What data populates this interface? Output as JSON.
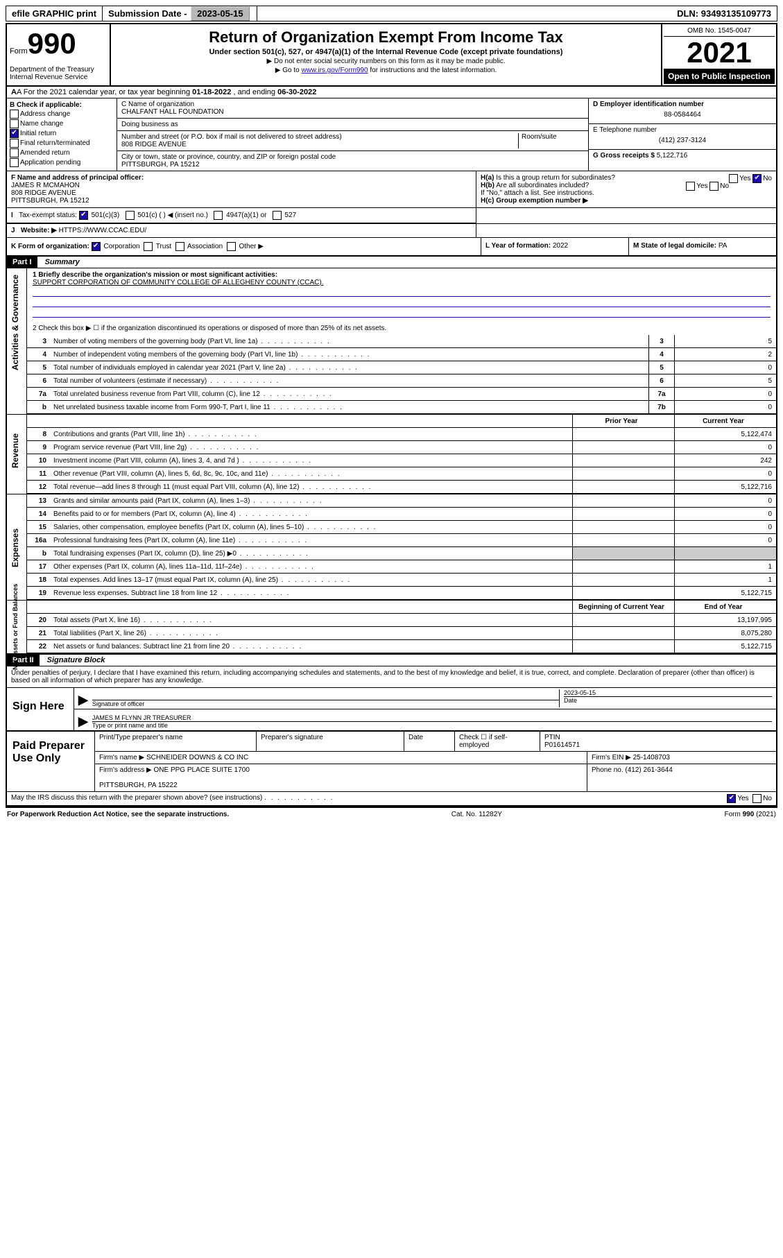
{
  "topbar": {
    "efile": "efile GRAPHIC print",
    "submission_label": "Submission Date - ",
    "submission_date": "2023-05-15",
    "dln_label": "DLN: ",
    "dln": "93493135109773"
  },
  "header": {
    "form_word": "Form",
    "form_number": "990",
    "dept": "Department of the Treasury\nInternal Revenue Service",
    "title": "Return of Organization Exempt From Income Tax",
    "subtitle": "Under section 501(c), 527, or 4947(a)(1) of the Internal Revenue Code (except private foundations)",
    "note1": "▶ Do not enter social security numbers on this form as it may be made public.",
    "note2_pre": "▶ Go to ",
    "note2_link": "www.irs.gov/Form990",
    "note2_post": " for instructions and the latest information.",
    "omb": "OMB No. 1545-0047",
    "year": "2021",
    "open": "Open to Public Inspection"
  },
  "row_a": {
    "text_pre": "A For the 2021 calendar year, or tax year beginning ",
    "begin": "01-18-2022",
    "mid": " , and ending ",
    "end": "06-30-2022"
  },
  "col_b": {
    "label": "B Check if applicable:",
    "opts": [
      "Address change",
      "Name change",
      "Initial return",
      "Final return/terminated",
      "Amended return",
      "Application pending"
    ],
    "checked_idx": 2
  },
  "col_c": {
    "name_lbl": "C Name of organization",
    "name": "CHALFANT HALL FOUNDATION",
    "dba_lbl": "Doing business as",
    "dba": "",
    "street_lbl": "Number and street (or P.O. box if mail is not delivered to street address)",
    "room_lbl": "Room/suite",
    "street": "808 RIDGE AVENUE",
    "city_lbl": "City or town, state or province, country, and ZIP or foreign postal code",
    "city": "PITTSBURGH, PA  15212"
  },
  "col_de": {
    "d_lbl": "D Employer identification number",
    "d_val": "88-0584464",
    "e_lbl": "E Telephone number",
    "e_val": "(412) 237-3124",
    "g_lbl": "G Gross receipts $ ",
    "g_val": "5,122,716"
  },
  "row_f": {
    "lbl": "F Name and address of principal officer:",
    "name": "JAMES R MCMAHON",
    "addr1": "808 RIDGE AVENUE",
    "addr2": "PITTSBURGH, PA  15212"
  },
  "row_h": {
    "a_lbl": "H(a)  Is this a group return for subordinates?",
    "a_yes": "Yes",
    "a_no": "No",
    "b_lbl": "H(b)  Are all subordinates included?",
    "b_note": "If \"No,\" attach a list. See instructions.",
    "c_lbl": "H(c)  Group exemption number ▶"
  },
  "row_i": {
    "lbl": "Tax-exempt status:",
    "opts": [
      "501(c)(3)",
      "501(c) (  ) ◀ (insert no.)",
      "4947(a)(1) or",
      "527"
    ],
    "checked_idx": 0
  },
  "row_j": {
    "lbl": "Website: ▶ ",
    "val": "HTTPS://WWW.CCAC.EDU/"
  },
  "row_k": {
    "k_lbl": "K Form of organization:",
    "k_opts": [
      "Corporation",
      "Trust",
      "Association",
      "Other ▶"
    ],
    "k_checked_idx": 0,
    "l_lbl": "L Year of formation: ",
    "l_val": "2022",
    "m_lbl": "M State of legal domicile: ",
    "m_val": "PA"
  },
  "part1": {
    "tag": "Part I",
    "title": "Summary"
  },
  "gov": {
    "label": "Activities & Governance",
    "l1_lbl": "1  Briefly describe the organization's mission or most significant activities:",
    "l1_val": "SUPPORT CORPORATION OF COMMUNITY COLLEGE OF ALLEGHENY COUNTY (CCAC).",
    "l2": "2   Check this box ▶ ☐  if the organization discontinued its operations or disposed of more than 25% of its net assets.",
    "rows": [
      {
        "n": "3",
        "t": "Number of voting members of the governing body (Part VI, line 1a)",
        "box": "3",
        "v": "5"
      },
      {
        "n": "4",
        "t": "Number of independent voting members of the governing body (Part VI, line 1b)",
        "box": "4",
        "v": "2"
      },
      {
        "n": "5",
        "t": "Total number of individuals employed in calendar year 2021 (Part V, line 2a)",
        "box": "5",
        "v": "0"
      },
      {
        "n": "6",
        "t": "Total number of volunteers (estimate if necessary)",
        "box": "6",
        "v": "5"
      },
      {
        "n": "7a",
        "t": "Total unrelated business revenue from Part VIII, column (C), line 12",
        "box": "7a",
        "v": "0"
      },
      {
        "n": "b",
        "t": "Net unrelated business taxable income from Form 990-T, Part I, line 11",
        "box": "7b",
        "v": "0"
      }
    ]
  },
  "rev": {
    "label": "Revenue",
    "hdr_prior": "Prior Year",
    "hdr_cur": "Current Year",
    "rows": [
      {
        "n": "8",
        "t": "Contributions and grants (Part VIII, line 1h)",
        "p": "",
        "c": "5,122,474"
      },
      {
        "n": "9",
        "t": "Program service revenue (Part VIII, line 2g)",
        "p": "",
        "c": "0"
      },
      {
        "n": "10",
        "t": "Investment income (Part VIII, column (A), lines 3, 4, and 7d )",
        "p": "",
        "c": "242"
      },
      {
        "n": "11",
        "t": "Other revenue (Part VIII, column (A), lines 5, 6d, 8c, 9c, 10c, and 11e)",
        "p": "",
        "c": "0"
      },
      {
        "n": "12",
        "t": "Total revenue—add lines 8 through 11 (must equal Part VIII, column (A), line 12)",
        "p": "",
        "c": "5,122,716"
      }
    ]
  },
  "exp": {
    "label": "Expenses",
    "rows": [
      {
        "n": "13",
        "t": "Grants and similar amounts paid (Part IX, column (A), lines 1–3)",
        "p": "",
        "c": "0"
      },
      {
        "n": "14",
        "t": "Benefits paid to or for members (Part IX, column (A), line 4)",
        "p": "",
        "c": "0"
      },
      {
        "n": "15",
        "t": "Salaries, other compensation, employee benefits (Part IX, column (A), lines 5–10)",
        "p": "",
        "c": "0"
      },
      {
        "n": "16a",
        "t": "Professional fundraising fees (Part IX, column (A), line 11e)",
        "p": "",
        "c": "0"
      },
      {
        "n": "b",
        "t": "Total fundraising expenses (Part IX, column (D), line 25) ▶0",
        "p": "shade",
        "c": "shade"
      },
      {
        "n": "17",
        "t": "Other expenses (Part IX, column (A), lines 11a–11d, 11f–24e)",
        "p": "",
        "c": "1"
      },
      {
        "n": "18",
        "t": "Total expenses. Add lines 13–17 (must equal Part IX, column (A), line 25)",
        "p": "",
        "c": "1"
      },
      {
        "n": "19",
        "t": "Revenue less expenses. Subtract line 18 from line 12",
        "p": "",
        "c": "5,122,715"
      }
    ]
  },
  "net": {
    "label": "Net Assets or Fund Balances",
    "hdr_begin": "Beginning of Current Year",
    "hdr_end": "End of Year",
    "rows": [
      {
        "n": "20",
        "t": "Total assets (Part X, line 16)",
        "p": "",
        "c": "13,197,995"
      },
      {
        "n": "21",
        "t": "Total liabilities (Part X, line 26)",
        "p": "",
        "c": "8,075,280"
      },
      {
        "n": "22",
        "t": "Net assets or fund balances. Subtract line 21 from line 20",
        "p": "",
        "c": "5,122,715"
      }
    ]
  },
  "part2": {
    "tag": "Part II",
    "title": "Signature Block"
  },
  "sig": {
    "intro": "Under penalties of perjury, I declare that I have examined this return, including accompanying schedules and statements, and to the best of my knowledge and belief, it is true, correct, and complete. Declaration of preparer (other than officer) is based on all information of which preparer has any knowledge.",
    "here": "Sign Here",
    "sig_lbl": "Signature of officer",
    "date_lbl": "Date",
    "date": "2023-05-15",
    "name": "JAMES M FLYNN JR TREASURER",
    "name_lbl": "Type or print name and title"
  },
  "prep": {
    "lbl": "Paid Preparer Use Only",
    "r1": {
      "a": "Print/Type preparer's name",
      "b": "Preparer's signature",
      "c": "Date",
      "d": "Check ☐ if self-employed",
      "e_lbl": "PTIN",
      "e": "P01614571"
    },
    "r2": {
      "a": "Firm's name      ▶ SCHNEIDER DOWNS & CO INC",
      "b": "Firm's EIN ▶ 25-1408703"
    },
    "r3": {
      "a": "Firm's address ▶ ONE PPG PLACE SUITE 1700",
      "b": "Phone no. (412) 261-3644"
    },
    "r3b": "PITTSBURGH, PA  15222"
  },
  "may": {
    "q": "May the IRS discuss this return with the preparer shown above? (see instructions)",
    "yes": "Yes",
    "no": "No"
  },
  "foot": {
    "l": "For Paperwork Reduction Act Notice, see the separate instructions.",
    "m": "Cat. No. 11282Y",
    "r": "Form 990 (2021)"
  }
}
